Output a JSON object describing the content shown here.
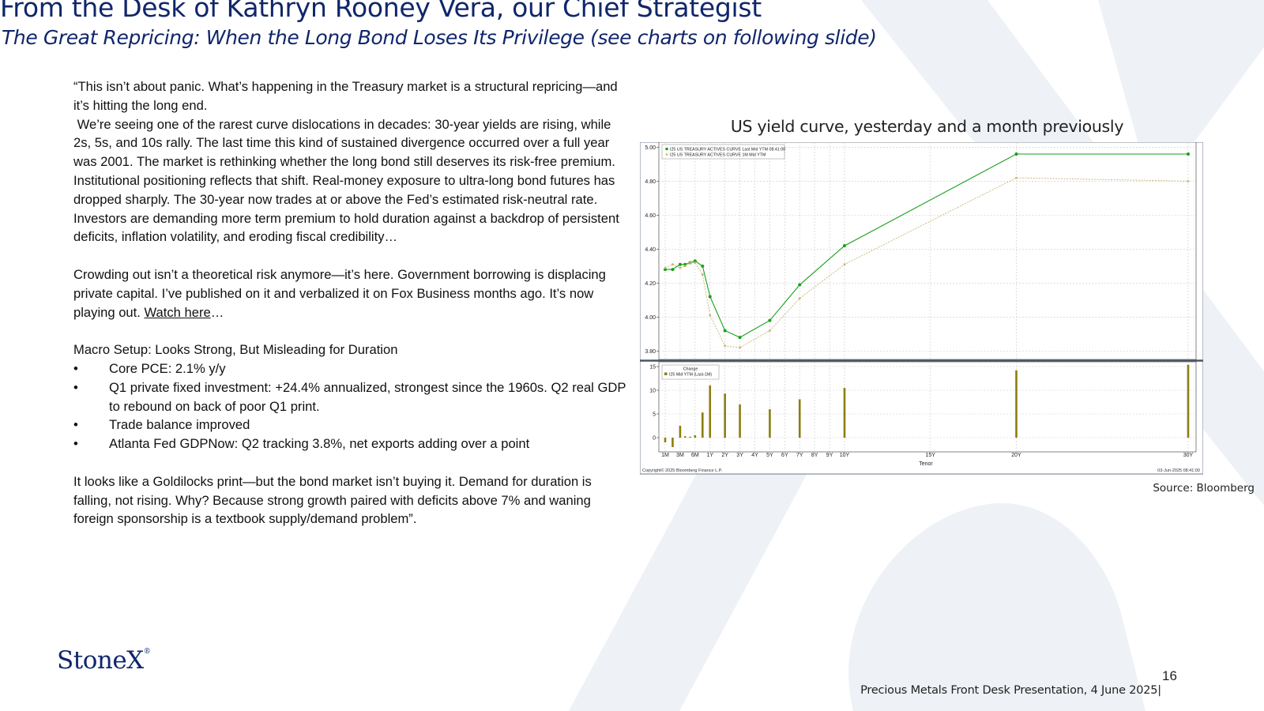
{
  "header": {
    "title": "From the Desk of Kathryn Rooney Vera, our Chief Strategist",
    "subtitle": "The Great Repricing: When the Long Bond Loses Its Privilege (see charts on following slide)"
  },
  "body": {
    "p1": "“This isn’t about panic. What’s happening in the Treasury market is a structural repricing—and it’s hitting the long end.",
    "p2": " We’re seeing one of the rarest curve dislocations in decades: 30-year yields are rising, while 2s, 5s, and 10s rally. The last time this kind of sustained divergence occurred over a full year was 2001. The market is rethinking whether the long bond still deserves its risk-free premium.",
    "p3": "Institutional positioning reflects that shift. Real-money exposure to ultra-long bond futures has dropped sharply. The 30-year now trades at or above the Fed’s estimated risk-neutral rate. Investors are demanding more term premium to hold duration against a backdrop of persistent deficits, inflation volatility, and eroding fiscal credibility…",
    "p4_text": "Crowding out isn’t a theoretical risk anymore—it’s here. Government borrowing is displacing private capital. I’ve published on it and verbalized it on Fox Business months ago. It’s now playing out. ",
    "p4_link": "Watch here",
    "p4_tail": "…",
    "macro_heading": "Macro Setup: Looks Strong, But Misleading for Duration",
    "bullets": [
      "Core PCE: 2.1% y/y",
      "Q1 private fixed investment: +24.4% annualized, strongest since the 1960s. Q2 real GDP to rebound on back of poor Q1 print.",
      "Trade balance improved",
      "Atlanta Fed GDPNow: Q2 tracking 3.8%, net exports adding over a point"
    ],
    "p5": "It looks like a Goldilocks print—but the bond market isn’t buying it. Demand for duration is falling, not rising. Why? Because strong growth paired with deficits above 7% and waning foreign sponsorship is a textbook supply/demand problem”."
  },
  "chart_title": "US yield curve, yesterday and a month previously",
  "chart_data": {
    "type": "line",
    "xlabel": "Tenor",
    "tick_labels": [
      "1M",
      "3M",
      "6M",
      "1Y",
      "2Y",
      "3Y",
      "4Y",
      "5Y",
      "6Y",
      "7Y",
      "8Y",
      "9Y",
      "10Y",
      "15Y",
      "20Y",
      "30Y"
    ],
    "tick_years": [
      0.0833,
      0.25,
      0.5,
      1,
      2,
      3,
      4,
      5,
      6,
      7,
      8,
      9,
      10,
      15,
      20,
      30
    ],
    "ylim_top": [
      3.75,
      5.03
    ],
    "yticks_top": [
      "3.80",
      "4.00",
      "4.20",
      "4.40",
      "4.60",
      "4.80",
      "5.00"
    ],
    "ylim_bottom": [
      -3,
      16
    ],
    "yticks_bottom": [
      "0",
      "5",
      "10",
      "15"
    ],
    "series": [
      {
        "name": "I25 US TREASURY ACTIVES CURVE Last Mid YTM 08:41:00",
        "color": "#1aa01a",
        "x": [
          0.0833,
          0.1667,
          0.25,
          0.333,
          0.4167,
          0.5,
          0.75,
          1,
          2,
          3,
          5,
          7,
          10,
          20,
          30
        ],
        "y": [
          4.28,
          4.28,
          4.31,
          4.31,
          4.32,
          4.33,
          4.3,
          4.12,
          3.92,
          3.88,
          3.98,
          4.19,
          4.42,
          4.96,
          4.96
        ]
      },
      {
        "name": "I25 US TREASURY ACTIVES CURVE 1M Mid YTM",
        "color": "#c8b472",
        "x": [
          0.0833,
          0.1667,
          0.25,
          0.333,
          0.4167,
          0.5,
          0.75,
          1,
          2,
          3,
          5,
          7,
          10,
          20,
          30
        ],
        "y": [
          4.29,
          4.31,
          4.29,
          4.3,
          4.32,
          4.32,
          4.25,
          4.01,
          3.83,
          3.82,
          3.92,
          4.11,
          4.31,
          4.82,
          4.8
        ]
      }
    ],
    "changes": {
      "legend_title": "Change",
      "name": "I25 Mid YTM (Last-1M)",
      "color": "#8c7d10",
      "x": [
        0.0833,
        0.1667,
        0.25,
        0.333,
        0.4167,
        0.5,
        0.75,
        1,
        2,
        3,
        5,
        7,
        10,
        20,
        30
      ],
      "y": [
        -1,
        -2,
        2.5,
        0.3,
        0.2,
        0.5,
        5.3,
        11,
        9.3,
        7,
        6,
        8.1,
        10.5,
        14.2,
        15.4
      ]
    },
    "copyright": "Copyright© 2025 Bloomberg Finance L.P.",
    "timestamp": "03-Jun-2025 08:41:00"
  },
  "source": "Source: Bloomberg",
  "logo_text": "StoneX",
  "logo_mark": "®",
  "page_number": "16",
  "footer": "Precious Metals Front Desk Presentation, 4 June 2025|"
}
